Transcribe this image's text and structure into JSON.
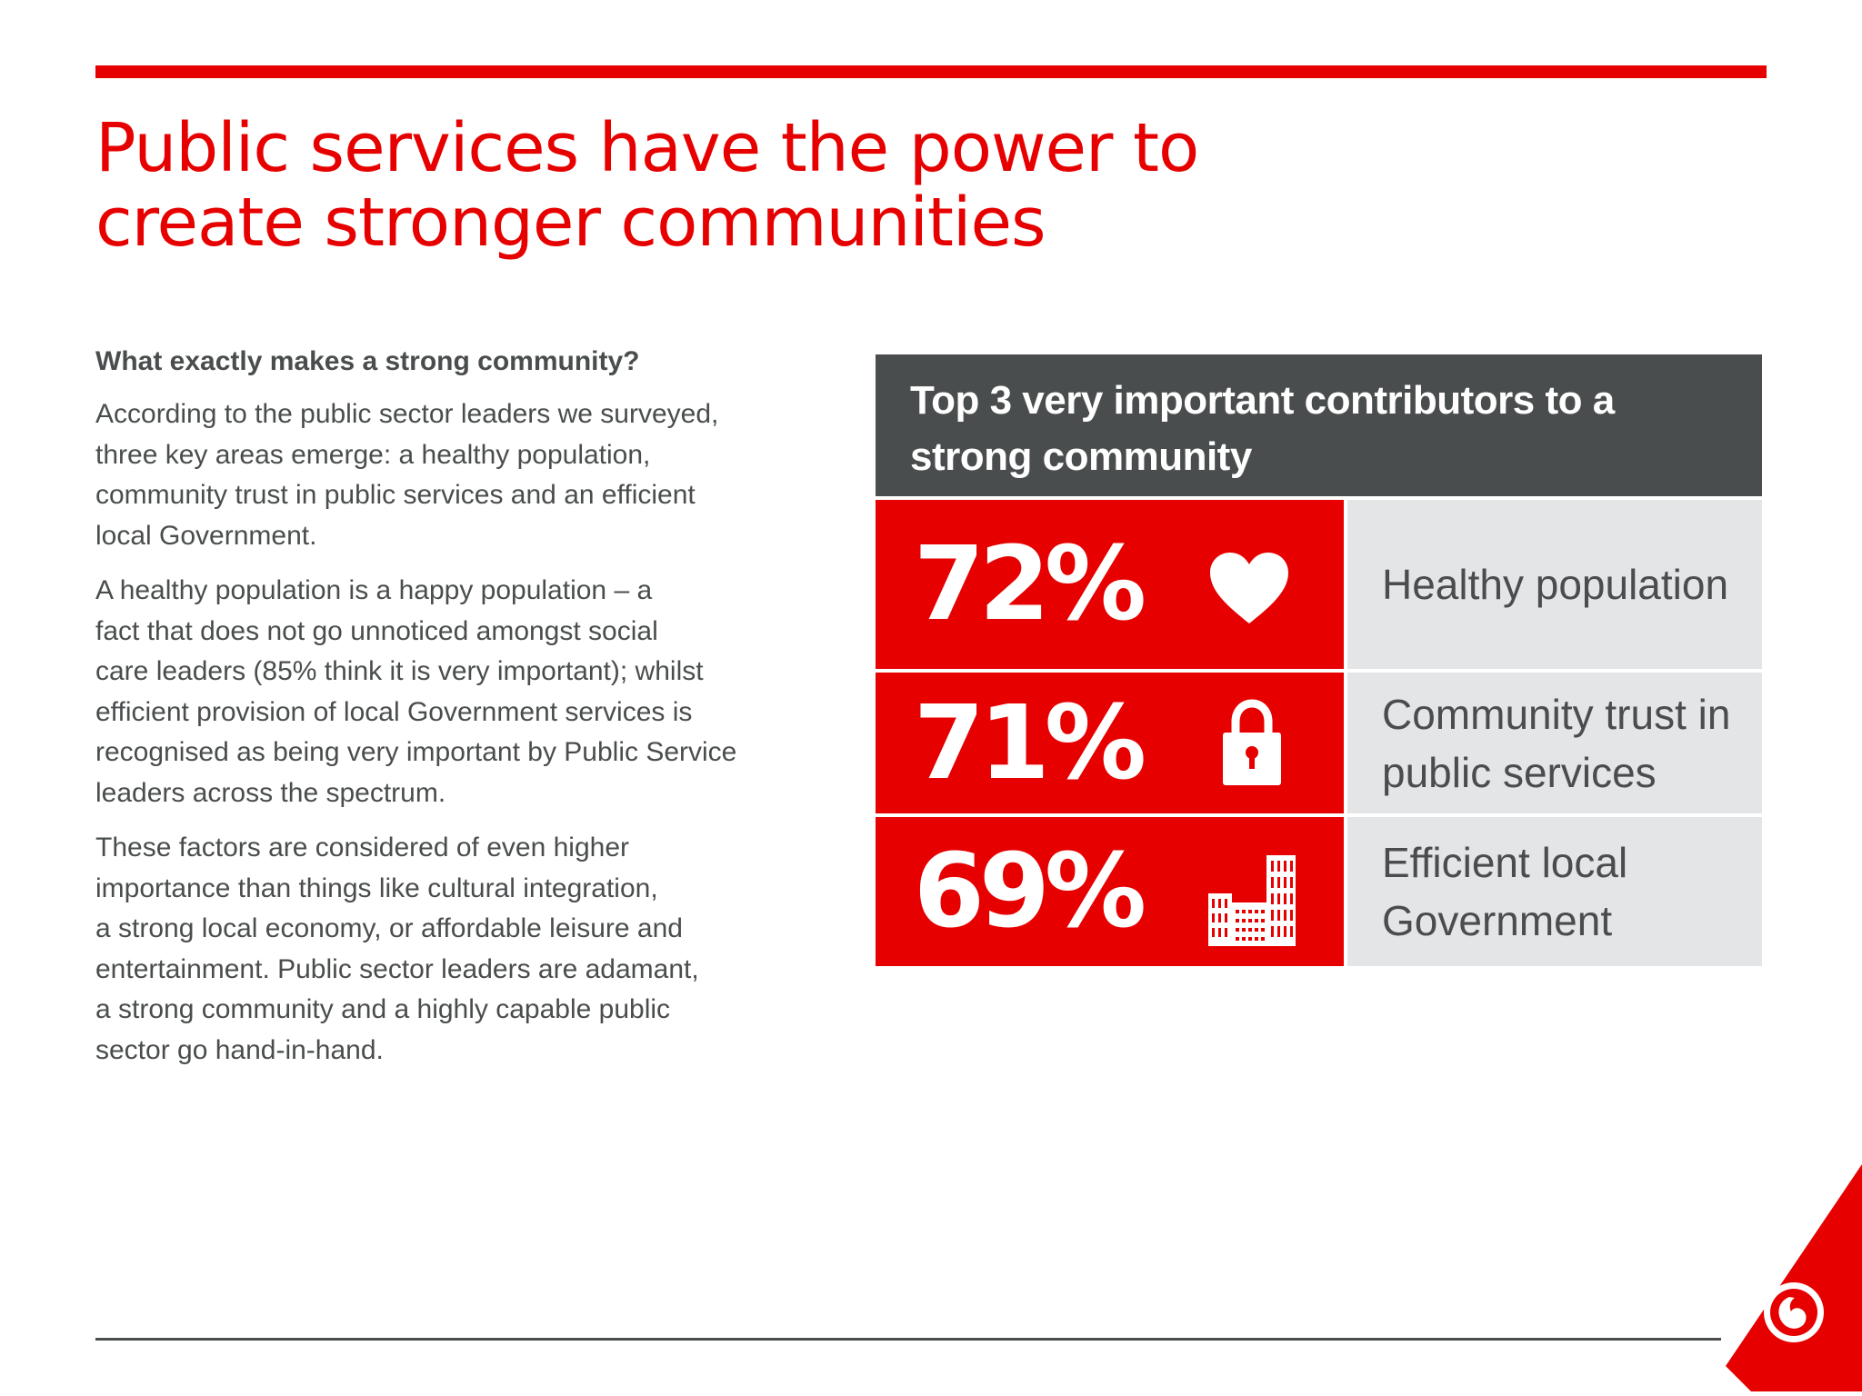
{
  "header": {
    "title_lines": [
      "Public services have the power to",
      "create stronger communities"
    ]
  },
  "body": {
    "subheading": "What exactly makes a strong community?",
    "paragraphs": [
      {
        "lines": [
          "According to the public sector leaders we surveyed,",
          "three key areas emerge: a healthy population,",
          "community trust in public services and an efficient",
          "local Government."
        ]
      },
      {
        "lines": [
          "A healthy population is a happy population – a",
          "fact that does not go unnoticed amongst social",
          "care leaders (85% think it is very important); whilst",
          "efficient provision of local Government services is",
          "recognised as being very important by Public Service",
          "leaders across the spectrum."
        ]
      },
      {
        "lines": [
          "These factors are considered of even higher",
          "importance than things like cultural integration,",
          "a strong local economy, or affordable leisure and",
          "entertainment. Public sector leaders are adamant,",
          "a strong community and a highly capable public",
          "sector go hand-in-hand."
        ]
      }
    ]
  },
  "panel": {
    "title_lines": [
      "Top 3 very important contributors to a",
      "strong community"
    ],
    "stats": [
      {
        "value": "72%",
        "icon": "heart-icon",
        "label_lines": [
          "Healthy population"
        ]
      },
      {
        "value": "71%",
        "icon": "padlock-icon",
        "label_lines": [
          "Community trust in",
          "public services"
        ]
      },
      {
        "value": "69%",
        "icon": "buildings-icon",
        "label_lines": [
          "Efficient local",
          "Government"
        ]
      }
    ]
  },
  "colors": {
    "brand_red": "#e60000",
    "dark_grey": "#4a4d4e",
    "light_grey": "#e4e5e7"
  },
  "logo": {
    "icon": "speechmark-logo-icon"
  }
}
